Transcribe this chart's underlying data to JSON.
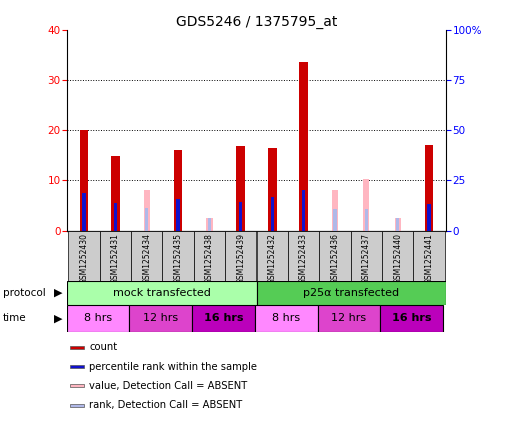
{
  "title": "GDS5246 / 1375795_at",
  "samples": [
    "GSM1252430",
    "GSM1252431",
    "GSM1252434",
    "GSM1252435",
    "GSM1252438",
    "GSM1252439",
    "GSM1252432",
    "GSM1252433",
    "GSM1252436",
    "GSM1252437",
    "GSM1252440",
    "GSM1252441"
  ],
  "count_values": [
    20.0,
    14.8,
    null,
    16.0,
    null,
    16.8,
    16.5,
    33.5,
    null,
    null,
    null,
    17.0
  ],
  "rank_values": [
    18.5,
    13.5,
    null,
    15.8,
    null,
    14.2,
    16.5,
    20.0,
    null,
    null,
    null,
    13.0
  ],
  "absent_value_values": [
    null,
    null,
    8.0,
    null,
    2.5,
    null,
    null,
    null,
    8.0,
    10.2,
    2.5,
    null
  ],
  "absent_rank_values": [
    null,
    null,
    11.0,
    null,
    6.0,
    null,
    null,
    null,
    10.5,
    10.8,
    6.0,
    null
  ],
  "count_color": "#cc0000",
  "rank_color": "#1111cc",
  "absent_value_color": "#ffb6c1",
  "absent_rank_color": "#b0b8e8",
  "protocol_mock": "mock transfected",
  "protocol_p25": "p25α transfected",
  "protocol_mock_color": "#aaffaa",
  "protocol_p25_color": "#55cc55",
  "time_color_8": "#ff88ff",
  "time_color_12": "#dd44cc",
  "time_color_16": "#bb00bb",
  "time_labels": [
    "8 hrs",
    "12 hrs",
    "16 hrs",
    "8 hrs",
    "12 hrs",
    "16 hrs"
  ],
  "ylim_left": [
    0,
    40
  ],
  "ylim_right": [
    0,
    100
  ],
  "yticks_left": [
    0,
    10,
    20,
    30,
    40
  ],
  "ytick_labels_right": [
    "0",
    "25",
    "50",
    "75",
    "100%"
  ],
  "background_color": "#ffffff",
  "sample_box_color": "#cccccc",
  "n_samples": 12
}
